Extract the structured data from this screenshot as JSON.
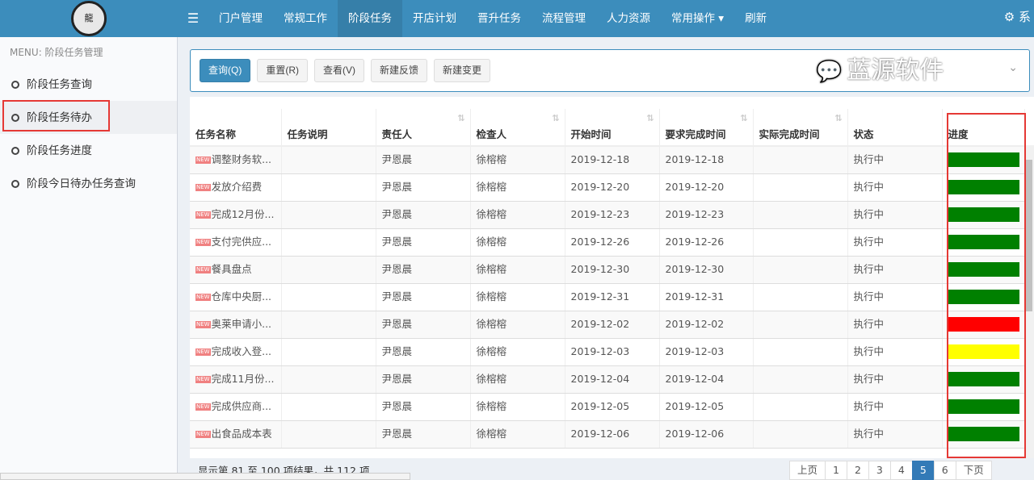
{
  "nav": {
    "logo_text": "龍將大印",
    "items": [
      "门户管理",
      "常规工作",
      "阶段任务",
      "开店计划",
      "晋升任务",
      "流程管理",
      "人力资源",
      "常用操作 ▾",
      "刷新"
    ],
    "active": 2,
    "right_text": "系"
  },
  "sidebar": {
    "title": "MENU: 阶段任务管理",
    "items": [
      "阶段任务查询",
      "阶段任务待办",
      "阶段任务进度",
      "阶段今日待办任务查询"
    ],
    "active": 1
  },
  "toolbar": {
    "buttons": [
      "查询(Q)",
      "重置(R)",
      "查看(V)",
      "新建反馈",
      "新建变更"
    ]
  },
  "table": {
    "headers": [
      "任务名称",
      "任务说明",
      "责任人",
      "检查人",
      "开始时间",
      "要求完成时间",
      "实际完成时间",
      "状态",
      "进度"
    ],
    "rows": [
      {
        "name": "调整财务软...",
        "desc": "",
        "owner": "尹恩晨",
        "checker": "徐榕榕",
        "start": "2019-12-18",
        "due": "2019-12-18",
        "actual": "",
        "status": "执行中",
        "progress_color": "#008000"
      },
      {
        "name": "发放介绍费",
        "desc": "",
        "owner": "尹恩晨",
        "checker": "徐榕榕",
        "start": "2019-12-20",
        "due": "2019-12-20",
        "actual": "",
        "status": "执行中",
        "progress_color": "#008000"
      },
      {
        "name": "完成12月份...",
        "desc": "",
        "owner": "尹恩晨",
        "checker": "徐榕榕",
        "start": "2019-12-23",
        "due": "2019-12-23",
        "actual": "",
        "status": "执行中",
        "progress_color": "#008000"
      },
      {
        "name": "支付完供应...",
        "desc": "",
        "owner": "尹恩晨",
        "checker": "徐榕榕",
        "start": "2019-12-26",
        "due": "2019-12-26",
        "actual": "",
        "status": "执行中",
        "progress_color": "#008000"
      },
      {
        "name": "餐具盘点",
        "desc": "",
        "owner": "尹恩晨",
        "checker": "徐榕榕",
        "start": "2019-12-30",
        "due": "2019-12-30",
        "actual": "",
        "status": "执行中",
        "progress_color": "#008000"
      },
      {
        "name": "仓库中央厨...",
        "desc": "",
        "owner": "尹恩晨",
        "checker": "徐榕榕",
        "start": "2019-12-31",
        "due": "2019-12-31",
        "actual": "",
        "status": "执行中",
        "progress_color": "#008000"
      },
      {
        "name": "奥莱申请小...",
        "desc": "",
        "owner": "尹恩晨",
        "checker": "徐榕榕",
        "start": "2019-12-02",
        "due": "2019-12-02",
        "actual": "",
        "status": "执行中",
        "progress_color": "#ff0000"
      },
      {
        "name": "完成收入登...",
        "desc": "",
        "owner": "尹恩晨",
        "checker": "徐榕榕",
        "start": "2019-12-03",
        "due": "2019-12-03",
        "actual": "",
        "status": "执行中",
        "progress_color": "#ffff00"
      },
      {
        "name": "完成11月份...",
        "desc": "",
        "owner": "尹恩晨",
        "checker": "徐榕榕",
        "start": "2019-12-04",
        "due": "2019-12-04",
        "actual": "",
        "status": "执行中",
        "progress_color": "#008000"
      },
      {
        "name": "完成供应商...",
        "desc": "",
        "owner": "尹恩晨",
        "checker": "徐榕榕",
        "start": "2019-12-05",
        "due": "2019-12-05",
        "actual": "",
        "status": "执行中",
        "progress_color": "#008000"
      },
      {
        "name": "出食品成本表",
        "desc": "",
        "owner": "尹恩晨",
        "checker": "徐榕榕",
        "start": "2019-12-06",
        "due": "2019-12-06",
        "actual": "",
        "status": "执行中",
        "progress_color": "#008000"
      }
    ],
    "new_badge": "NEW"
  },
  "footer": {
    "info": "显示第 81 至 100 项结果，共 112 项"
  },
  "pager": {
    "items": [
      "上页",
      "1",
      "2",
      "3",
      "4",
      "5",
      "6",
      "下页"
    ],
    "active": "5"
  },
  "watermark": "蓝源软件",
  "colors": {
    "nav": "#3c8dbc",
    "highlight": "#e53935"
  }
}
